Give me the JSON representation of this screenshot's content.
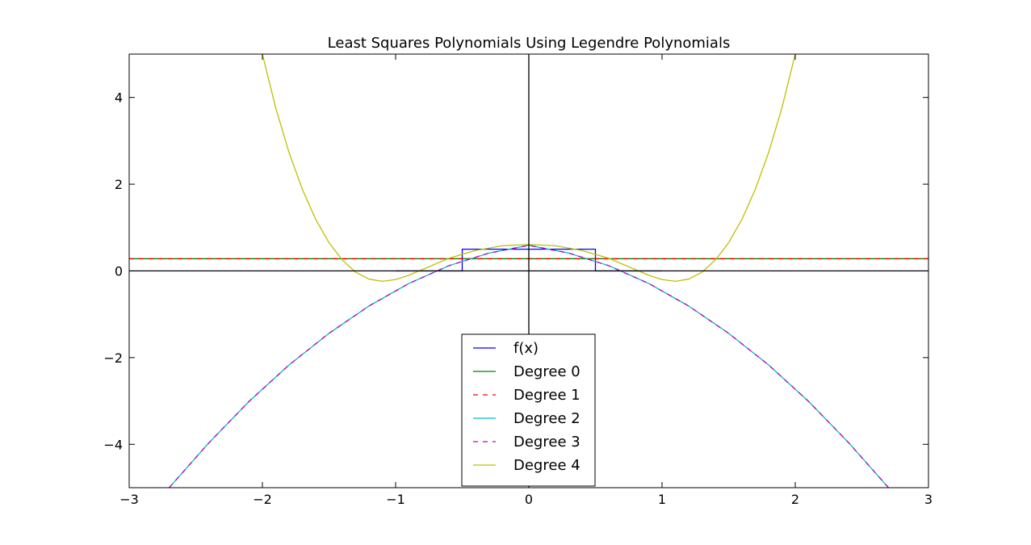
{
  "chart_data": {
    "type": "line",
    "title": "Least Squares Polynomials Using Legendre Polynomials",
    "xlabel": "",
    "ylabel": "",
    "xlim": [
      -3,
      3
    ],
    "ylim": [
      -5,
      5
    ],
    "x_ticks": [
      -3,
      -2,
      -1,
      0,
      1,
      2,
      3
    ],
    "y_ticks": [
      -4,
      -2,
      0,
      2,
      4
    ],
    "x_tick_labels": [
      "−3",
      "−2",
      "−1",
      "0",
      "1",
      "2",
      "3"
    ],
    "y_tick_labels": [
      "−4",
      "−2",
      "0",
      "2",
      "4"
    ],
    "grid": false,
    "axis_lines": {
      "x_axis_at_y": 0,
      "y_axis_at_x": 0
    },
    "legend_position": "lower-center",
    "series": [
      {
        "name": "f(x)",
        "color": "#0000ff",
        "style": "solid",
        "x": [
          -1,
          -0.5,
          -0.5,
          0.5,
          0.5,
          1
        ],
        "y": [
          0,
          0,
          0.5,
          0.5,
          0,
          0
        ]
      },
      {
        "name": "Degree 0",
        "color": "#008000",
        "style": "solid",
        "x": [
          -3,
          3
        ],
        "y": [
          0.28,
          0.28
        ]
      },
      {
        "name": "Degree 1",
        "color": "#ff0000",
        "style": "dashed",
        "x": [
          -3,
          3
        ],
        "y": [
          0.28,
          0.28
        ]
      },
      {
        "name": "Degree 2",
        "color": "#00bfbf",
        "style": "solid",
        "x": [
          -2.7,
          -2.4,
          -2.1,
          -1.8,
          -1.5,
          -1.2,
          -0.9,
          -0.6,
          -0.3,
          0,
          0.3,
          0.6,
          0.9,
          1.2,
          1.5,
          1.8,
          2.1,
          2.4,
          2.7
        ],
        "y": [
          -5.0,
          -3.96,
          -3.01,
          -2.17,
          -1.44,
          -0.81,
          -0.29,
          0.12,
          0.41,
          0.59,
          0.41,
          0.12,
          -0.29,
          -0.81,
          -1.44,
          -2.17,
          -3.01,
          -3.96,
          -5.0
        ]
      },
      {
        "name": "Degree 3",
        "color": "#bf00bf",
        "style": "dashed",
        "x": [
          -2.7,
          -2.4,
          -2.1,
          -1.8,
          -1.5,
          -1.2,
          -0.9,
          -0.6,
          -0.3,
          0,
          0.3,
          0.6,
          0.9,
          1.2,
          1.5,
          1.8,
          2.1,
          2.4,
          2.7
        ],
        "y": [
          -5.0,
          -3.96,
          -3.01,
          -2.17,
          -1.44,
          -0.81,
          -0.29,
          0.12,
          0.41,
          0.59,
          0.41,
          0.12,
          -0.29,
          -0.81,
          -1.44,
          -2.17,
          -3.01,
          -3.96,
          -5.0
        ]
      },
      {
        "name": "Degree 4",
        "color": "#bfbf00",
        "style": "solid",
        "x": [
          -2.0,
          -1.9,
          -1.8,
          -1.7,
          -1.6,
          -1.5,
          -1.4,
          -1.3,
          -1.2,
          -1.1,
          -1.0,
          -0.9,
          -0.8,
          -0.6,
          -0.4,
          -0.2,
          0,
          0.2,
          0.4,
          0.6,
          0.8,
          0.9,
          1.0,
          1.1,
          1.2,
          1.3,
          1.4,
          1.5,
          1.6,
          1.7,
          1.8,
          1.9,
          2.0
        ],
        "y": [
          5.0,
          3.76,
          2.73,
          1.88,
          1.19,
          0.65,
          0.25,
          -0.03,
          -0.19,
          -0.24,
          -0.2,
          -0.1,
          0.03,
          0.29,
          0.47,
          0.58,
          0.61,
          0.58,
          0.47,
          0.29,
          0.03,
          -0.1,
          -0.2,
          -0.24,
          -0.19,
          -0.03,
          0.25,
          0.65,
          1.19,
          1.88,
          2.73,
          3.76,
          5.0
        ]
      }
    ]
  }
}
